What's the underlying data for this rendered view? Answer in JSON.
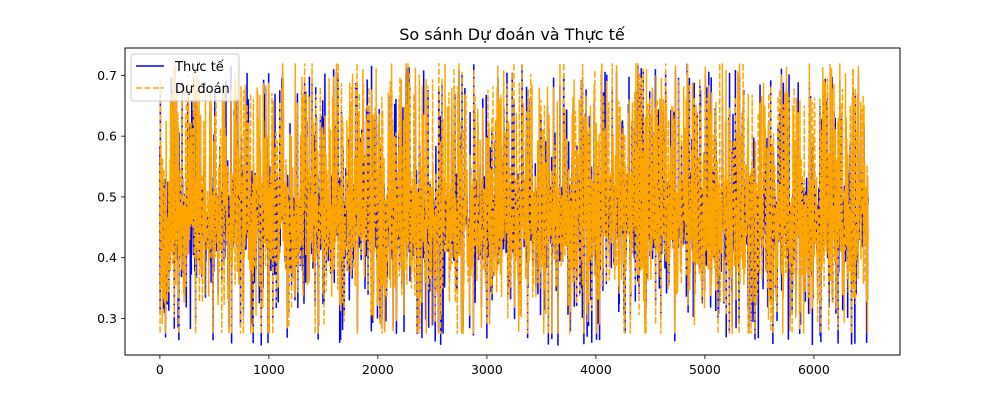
{
  "chart_data": {
    "type": "line",
    "title": "So sánh Dự đoán và Thực tế",
    "xlabel": "",
    "ylabel": "",
    "xlim": [
      -320,
      6790
    ],
    "ylim": [
      0.24,
      0.745
    ],
    "x_ticks": [
      0,
      1000,
      2000,
      3000,
      4000,
      5000,
      6000
    ],
    "y_ticks": [
      0.3,
      0.4,
      0.5,
      0.6,
      0.7
    ],
    "x_tick_labels": [
      "0",
      "1000",
      "2000",
      "3000",
      "4000",
      "5000",
      "6000"
    ],
    "y_tick_labels": [
      "0.3",
      "0.4",
      "0.5",
      "0.6",
      "0.7"
    ],
    "grid": false,
    "legend_position": "upper-left",
    "series": [
      {
        "name": "Thực tế",
        "color": "#0000ff",
        "style": "solid",
        "n_points": 6500,
        "value_range": [
          0.255,
          0.72
        ],
        "typical_range": [
          0.37,
          0.55
        ]
      },
      {
        "name": "Dự đoán",
        "color": "#ffa500",
        "style": "dashed",
        "n_points": 6500,
        "value_range": [
          0.275,
          0.72
        ],
        "typical_range": [
          0.38,
          0.55
        ]
      }
    ]
  }
}
